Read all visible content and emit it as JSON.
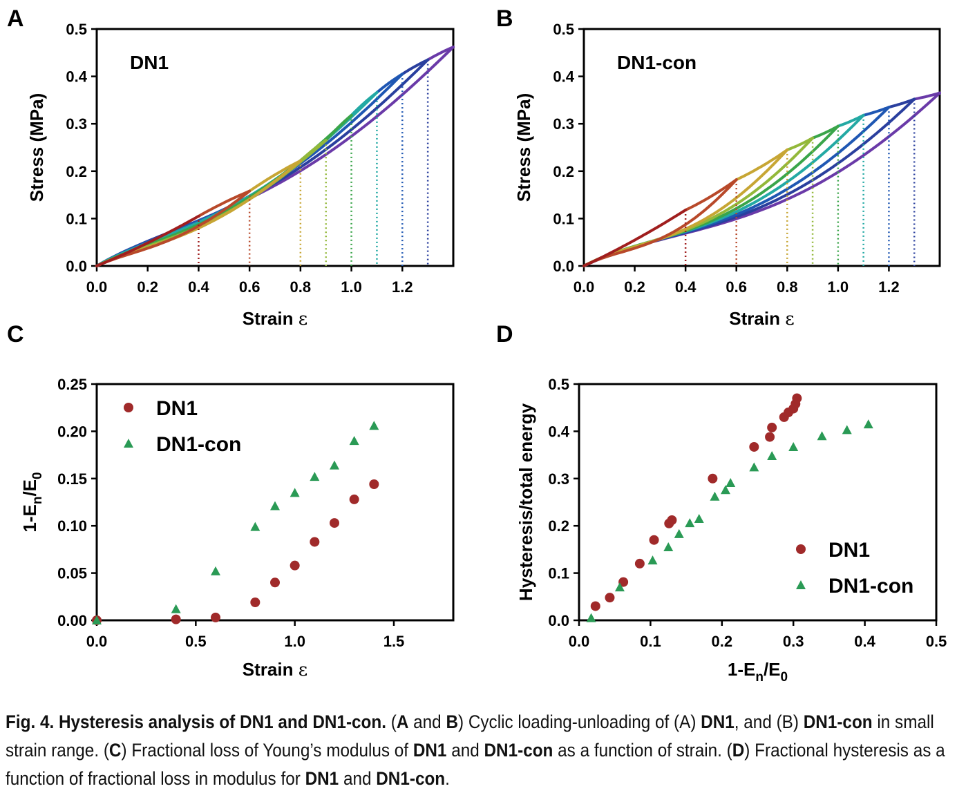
{
  "colors": {
    "axis": "#000000",
    "scatter_dn1": "#a02a2a",
    "scatter_dn1con": "#2a9a55",
    "cycle_palette": [
      "#a01e1e",
      "#b8492a",
      "#c7a634",
      "#93b83a",
      "#3aa54a",
      "#23a9a4",
      "#1f57b3",
      "#2a3f9e",
      "#6a3aa8"
    ]
  },
  "panels": {
    "A": {
      "letter": "A"
    },
    "B": {
      "letter": "B"
    },
    "C": {
      "letter": "C"
    },
    "D": {
      "letter": "D"
    }
  },
  "chart_data": [
    {
      "id": "A",
      "type": "line",
      "inset_label": "DN1",
      "xlabel": "Strain  ε",
      "ylabel": "Stress (MPa)",
      "xlim": [
        0,
        1.4
      ],
      "ylim": [
        0,
        0.5
      ],
      "xticks": [
        "0.0",
        "0.2",
        "0.4",
        "0.6",
        "0.8",
        "1.0",
        "1.2"
      ],
      "yticks": [
        "0.0",
        "0.1",
        "0.2",
        "0.3",
        "0.4",
        "0.5"
      ],
      "cycles": [
        {
          "max_strain": 0.4,
          "peak_stress": 0.105,
          "color": "#a01e1e"
        },
        {
          "max_strain": 0.6,
          "peak_stress": 0.158,
          "color": "#b8492a"
        },
        {
          "max_strain": 0.8,
          "peak_stress": 0.222,
          "color": "#c7a634"
        },
        {
          "max_strain": 0.9,
          "peak_stress": 0.265,
          "color": "#93b83a"
        },
        {
          "max_strain": 1.0,
          "peak_stress": 0.318,
          "color": "#3aa54a"
        },
        {
          "max_strain": 1.1,
          "peak_stress": 0.366,
          "color": "#23a9a4"
        },
        {
          "max_strain": 1.2,
          "peak_stress": 0.405,
          "color": "#1f57b3"
        },
        {
          "max_strain": 1.3,
          "peak_stress": 0.435,
          "color": "#2a3f9e"
        },
        {
          "max_strain": 1.4,
          "peak_stress": 0.462,
          "color": "#6a3aa8"
        }
      ]
    },
    {
      "id": "B",
      "type": "line",
      "inset_label": "DN1-con",
      "xlabel": "Strain  ε",
      "ylabel": "Stress (MPa)",
      "xlim": [
        0,
        1.4
      ],
      "ylim": [
        0,
        0.5
      ],
      "xticks": [
        "0.0",
        "0.2",
        "0.4",
        "0.6",
        "0.8",
        "1.0",
        "1.2"
      ],
      "yticks": [
        "0.0",
        "0.1",
        "0.2",
        "0.3",
        "0.4",
        "0.5"
      ],
      "cycles": [
        {
          "max_strain": 0.4,
          "peak_stress": 0.118,
          "color": "#a01e1e"
        },
        {
          "max_strain": 0.6,
          "peak_stress": 0.182,
          "color": "#b8492a"
        },
        {
          "max_strain": 0.8,
          "peak_stress": 0.245,
          "color": "#c7a634"
        },
        {
          "max_strain": 0.9,
          "peak_stress": 0.27,
          "color": "#93b83a"
        },
        {
          "max_strain": 1.0,
          "peak_stress": 0.295,
          "color": "#3aa54a"
        },
        {
          "max_strain": 1.1,
          "peak_stress": 0.318,
          "color": "#23a9a4"
        },
        {
          "max_strain": 1.2,
          "peak_stress": 0.335,
          "color": "#1f57b3"
        },
        {
          "max_strain": 1.3,
          "peak_stress": 0.352,
          "color": "#2a3f9e"
        },
        {
          "max_strain": 1.4,
          "peak_stress": 0.365,
          "color": "#6a3aa8"
        }
      ]
    },
    {
      "id": "C",
      "type": "scatter",
      "xlabel": "Strain  ε",
      "ylabel": "1-En/E0",
      "xlim": [
        0,
        1.8
      ],
      "ylim": [
        0,
        0.25
      ],
      "xticks": [
        "0.0",
        "0.5",
        "1.0",
        "1.5"
      ],
      "yticks": [
        "0.00",
        "0.05",
        "0.10",
        "0.15",
        "0.20",
        "0.25"
      ],
      "series": [
        {
          "name": "DN1",
          "marker": "circle",
          "x": [
            0.0,
            0.4,
            0.6,
            0.8,
            0.9,
            1.0,
            1.1,
            1.2,
            1.3,
            1.4
          ],
          "y": [
            0.0,
            0.001,
            0.003,
            0.019,
            0.04,
            0.058,
            0.083,
            0.103,
            0.128,
            0.144
          ]
        },
        {
          "name": "DN1-con",
          "marker": "triangle",
          "x": [
            0.0,
            0.4,
            0.6,
            0.8,
            0.9,
            1.0,
            1.1,
            1.2,
            1.3,
            1.4
          ],
          "y": [
            0.0,
            0.012,
            0.052,
            0.099,
            0.121,
            0.135,
            0.152,
            0.164,
            0.19,
            0.206
          ]
        }
      ]
    },
    {
      "id": "D",
      "type": "scatter",
      "xlabel": "1-En/E0",
      "ylabel": "Hysteresis/total energy",
      "xlim": [
        0,
        0.5
      ],
      "ylim": [
        0,
        0.5
      ],
      "xticks": [
        "0.0",
        "0.1",
        "0.2",
        "0.3",
        "0.4",
        "0.5"
      ],
      "yticks": [
        "0.0",
        "0.1",
        "0.2",
        "0.3",
        "0.4",
        "0.5"
      ],
      "series": [
        {
          "name": "DN1",
          "marker": "circle",
          "x": [
            0.023,
            0.043,
            0.062,
            0.085,
            0.105,
            0.126,
            0.13,
            0.187,
            0.245,
            0.267,
            0.27,
            0.287,
            0.293,
            0.3,
            0.303,
            0.305
          ],
          "y": [
            0.03,
            0.048,
            0.081,
            0.12,
            0.17,
            0.205,
            0.212,
            0.3,
            0.367,
            0.388,
            0.408,
            0.43,
            0.44,
            0.448,
            0.458,
            0.47
          ]
        },
        {
          "name": "DN1-con",
          "marker": "triangle",
          "x": [
            0.017,
            0.057,
            0.103,
            0.125,
            0.14,
            0.155,
            0.168,
            0.19,
            0.205,
            0.212,
            0.245,
            0.27,
            0.3,
            0.34,
            0.375,
            0.405
          ],
          "y": [
            0.005,
            0.07,
            0.127,
            0.155,
            0.183,
            0.206,
            0.215,
            0.262,
            0.276,
            0.291,
            0.324,
            0.348,
            0.367,
            0.39,
            0.403,
            0.415
          ]
        }
      ]
    }
  ],
  "caption": {
    "fig_label": "Fig. 4.",
    "title": "Hysteresis analysis of DN1 and DN1-con.",
    "segments": [
      {
        "text": " (",
        "bold": false
      },
      {
        "text": "A",
        "bold": true
      },
      {
        "text": " and ",
        "bold": false
      },
      {
        "text": "B",
        "bold": true
      },
      {
        "text": ") Cyclic loading-unloading of (A) ",
        "bold": false
      },
      {
        "text": "DN1",
        "bold": true
      },
      {
        "text": ", and (B) ",
        "bold": false
      },
      {
        "text": "DN1-con",
        "bold": true
      },
      {
        "text": " in small strain range. (",
        "bold": false
      },
      {
        "text": "C",
        "bold": true
      },
      {
        "text": ") Fractional loss of Young’s modulus of ",
        "bold": false
      },
      {
        "text": "DN1",
        "bold": true
      },
      {
        "text": " and ",
        "bold": false
      },
      {
        "text": "DN1-con",
        "bold": true
      },
      {
        "text": " as a function of strain. (",
        "bold": false
      },
      {
        "text": "D",
        "bold": true
      },
      {
        "text": ") Fractional hysteresis as a function of fractional loss in modulus for ",
        "bold": false
      },
      {
        "text": "DN1",
        "bold": true
      },
      {
        "text": " and ",
        "bold": false
      },
      {
        "text": "DN1-con",
        "bold": true
      },
      {
        "text": ".",
        "bold": false
      }
    ]
  }
}
